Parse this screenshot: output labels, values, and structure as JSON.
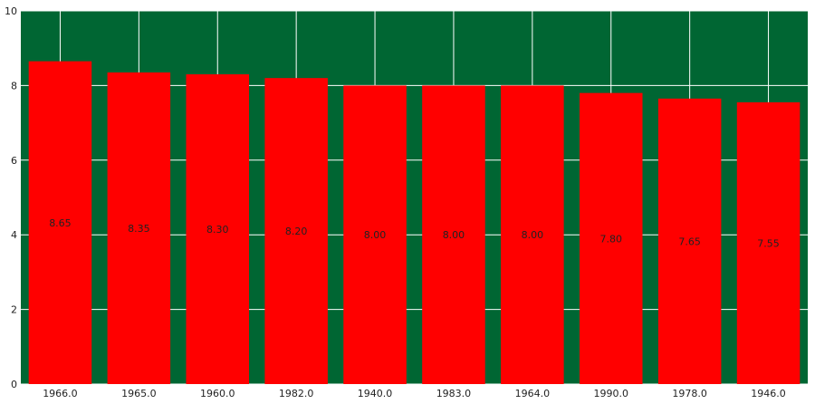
{
  "chart_data": {
    "type": "bar",
    "categories": [
      "1966.0",
      "1965.0",
      "1960.0",
      "1982.0",
      "1940.0",
      "1983.0",
      "1964.0",
      "1990.0",
      "1978.0",
      "1946.0"
    ],
    "values": [
      8.65,
      8.35,
      8.3,
      8.2,
      8.0,
      8.0,
      8.0,
      7.8,
      7.65,
      7.55
    ],
    "value_labels": [
      "8.65",
      "8.35",
      "8.30",
      "8.20",
      "8.00",
      "8.00",
      "8.00",
      "7.80",
      "7.65",
      "7.55"
    ],
    "title": "",
    "xlabel": "",
    "ylabel": "",
    "ylim": [
      0,
      10
    ],
    "yticks": [
      "0",
      "2",
      "4",
      "6",
      "8",
      "10"
    ],
    "grid": true,
    "colors": {
      "plot_background": "#006633",
      "bar": "#ff0000",
      "grid": "#ffffff",
      "text": "#222222"
    }
  }
}
